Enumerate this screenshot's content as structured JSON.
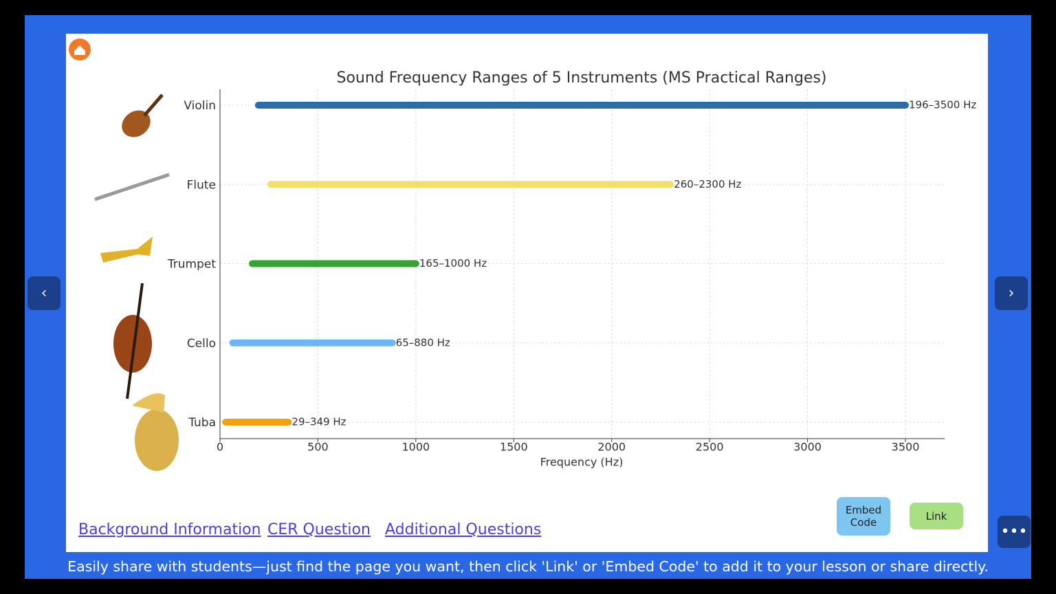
{
  "chart_data": {
    "type": "range_bar",
    "title": "Sound Frequency Ranges of 5 Instruments (MS Practical Ranges)",
    "x_label": "Frequency (Hz)",
    "categories": [
      "Violin",
      "Flute",
      "Trumpet",
      "Cello",
      "Tuba"
    ],
    "values": [
      [
        196,
        3500
      ],
      [
        260,
        2300
      ],
      [
        165,
        1000
      ],
      [
        65,
        880
      ],
      [
        29,
        349
      ]
    ],
    "value_labels": [
      "196–3500 Hz",
      "260–2300 Hz",
      "165–1000 Hz",
      "65–880 Hz",
      "29–349 Hz"
    ],
    "colors": [
      "#2b6ea6",
      "#f2e06a",
      "#36a336",
      "#6cb6f2",
      "#f0a312"
    ],
    "xlim": [
      0,
      3700
    ],
    "xticks": [
      0,
      500,
      1000,
      1500,
      2000,
      2500,
      3000,
      3500
    ],
    "grid": true
  },
  "links": [
    "Background Information",
    "CER Question",
    "Additional Questions"
  ],
  "buttons": {
    "embed": "Embed Code",
    "link": "Link"
  },
  "footer": "Easily share with students—just find the page you want, then click 'Link' or 'Embed Code' to add it to your lesson or share directly."
}
